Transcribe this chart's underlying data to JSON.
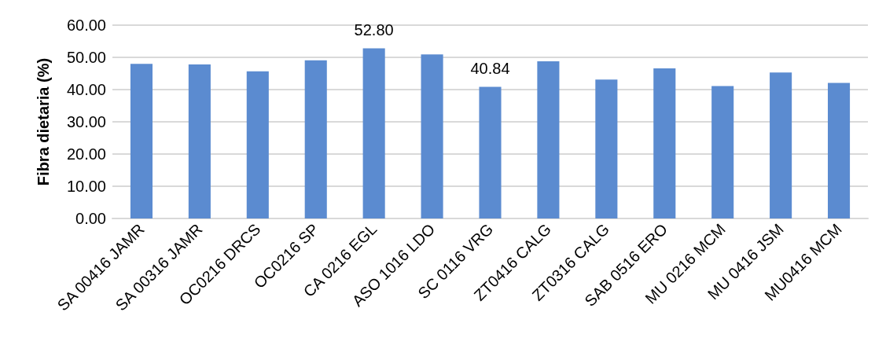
{
  "chart_data": {
    "type": "bar",
    "ylabel": "Fibra dietaria (%)",
    "categories": [
      "SA 00416 JAMR",
      "SA 00316 JAMR",
      "OC0216 DRCS",
      "OC0216 SP",
      "CA 0216 EGL",
      "ASO 1016 LDO",
      "SC 0116 VRG",
      "ZT0416 CALG",
      "ZT0316 CALG",
      "SAB 0516 ERO",
      "MU 0216 MCM",
      "MU 0416 JSM",
      "MU0416 MCM"
    ],
    "values": [
      48.0,
      47.8,
      45.7,
      49.1,
      52.8,
      50.9,
      40.84,
      48.8,
      43.1,
      46.6,
      41.1,
      45.3,
      42.1
    ],
    "value_labels": [
      null,
      null,
      null,
      null,
      "52.80",
      null,
      "40.84",
      null,
      null,
      null,
      null,
      null,
      null
    ],
    "color": "#5b8bd0",
    "ylim": [
      0,
      60
    ],
    "yticks": [
      {
        "value": 0,
        "label": "0.00"
      },
      {
        "value": 10,
        "label": "10.00"
      },
      {
        "value": 20,
        "label": "20.00"
      },
      {
        "value": 30,
        "label": "30.00"
      },
      {
        "value": 40,
        "label": "40.00"
      },
      {
        "value": 50,
        "label": "50.00"
      },
      {
        "value": 60,
        "label": "60.00"
      }
    ],
    "grid": "y"
  }
}
